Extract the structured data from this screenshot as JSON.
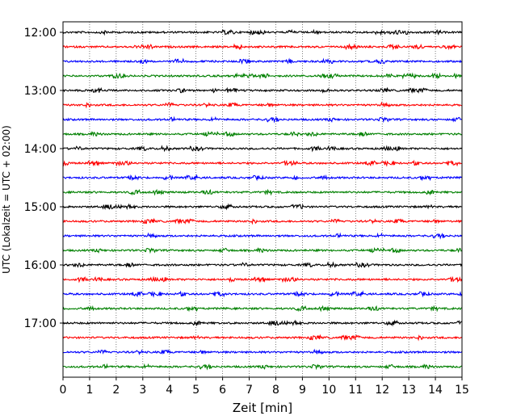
{
  "chart_data": {
    "type": "line",
    "title": "",
    "xlabel": "Zeit  [min]",
    "ylabel": "UTC (Lokalzeit = UTC + 02:00)",
    "xlim": [
      0,
      15
    ],
    "x_ticks": [
      "0",
      "1",
      "2",
      "3",
      "4",
      "5",
      "6",
      "7",
      "8",
      "9",
      "10",
      "11",
      "12",
      "13",
      "14",
      "15"
    ],
    "y_ticks": [
      "12:00",
      "13:00",
      "14:00",
      "15:00",
      "16:00",
      "17:00"
    ],
    "grid": {
      "x": "dotted-vertical",
      "y": "none"
    },
    "trace_interval_minutes": 15,
    "start_time": "12:00",
    "end_time": "17:45",
    "colors": [
      "#000000",
      "#ff0000",
      "#0000ff",
      "#008000"
    ],
    "series": [
      {
        "time": "12:00",
        "color": "#000000"
      },
      {
        "time": "12:15",
        "color": "#ff0000"
      },
      {
        "time": "12:30",
        "color": "#0000ff"
      },
      {
        "time": "12:45",
        "color": "#008000"
      },
      {
        "time": "13:00",
        "color": "#000000"
      },
      {
        "time": "13:15",
        "color": "#ff0000"
      },
      {
        "time": "13:30",
        "color": "#0000ff"
      },
      {
        "time": "13:45",
        "color": "#008000"
      },
      {
        "time": "14:00",
        "color": "#000000"
      },
      {
        "time": "14:15",
        "color": "#ff0000"
      },
      {
        "time": "14:30",
        "color": "#0000ff"
      },
      {
        "time": "14:45",
        "color": "#008000"
      },
      {
        "time": "15:00",
        "color": "#000000"
      },
      {
        "time": "15:15",
        "color": "#ff0000"
      },
      {
        "time": "15:30",
        "color": "#0000ff"
      },
      {
        "time": "15:45",
        "color": "#008000"
      },
      {
        "time": "16:00",
        "color": "#000000"
      },
      {
        "time": "16:15",
        "color": "#ff0000"
      },
      {
        "time": "16:30",
        "color": "#0000ff"
      },
      {
        "time": "16:45",
        "color": "#008000"
      },
      {
        "time": "17:00",
        "color": "#000000"
      },
      {
        "time": "17:15",
        "color": "#ff0000"
      },
      {
        "time": "17:30",
        "color": "#0000ff"
      },
      {
        "time": "17:45",
        "color": "#008000"
      }
    ]
  }
}
